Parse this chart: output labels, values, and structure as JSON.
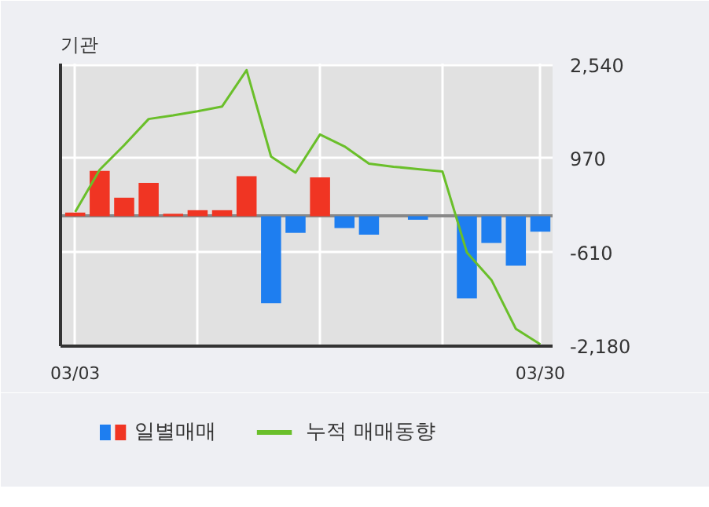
{
  "chart_data": {
    "type": "bar",
    "title": "기관",
    "categories": [
      "03/03",
      null,
      null,
      null,
      null,
      null,
      null,
      null,
      null,
      null,
      null,
      null,
      null,
      null,
      null,
      null,
      null,
      null,
      null,
      "03/30"
    ],
    "series": [
      {
        "name": "일별매매",
        "colors": [
          "#f03523",
          "#f03523",
          "#f03523",
          "#f03523",
          "#f03523",
          "#f03523",
          "#f03523",
          "#f03523",
          "#1e7ef0",
          "#1e7ef0",
          "#f03523",
          "#1e7ef0",
          "#1e7ef0",
          "#1e7ef0",
          "#1e7ef0",
          "#1e7ef0",
          "#1e7ef0",
          "#1e7ef0",
          "#1e7ef0",
          "#1e7ef0"
        ],
        "values": [
          60,
          760,
          310,
          560,
          40,
          100,
          100,
          670,
          -1460,
          -280,
          650,
          -200,
          -310,
          0,
          -60,
          0,
          -1380,
          -450,
          -830,
          -260
        ]
      },
      {
        "name": "누적 매매동향",
        "type": "line",
        "color": "#6abf2a",
        "values": [
          70,
          780,
          1190,
          1630,
          1690,
          1760,
          1840,
          2450,
          1000,
          730,
          1370,
          1170,
          880,
          830,
          790,
          750,
          -610,
          -1070,
          -1890,
          -2150
        ]
      }
    ],
    "ylim": [
      -2180,
      2560
    ],
    "yticks": [
      {
        "value": 2540,
        "label": "2,540"
      },
      {
        "value": 970,
        "label": "970"
      },
      {
        "value": -610,
        "label": "-610"
      },
      {
        "value": -2180,
        "label": "-2,180"
      }
    ],
    "grid": true,
    "legend": "bottom"
  }
}
